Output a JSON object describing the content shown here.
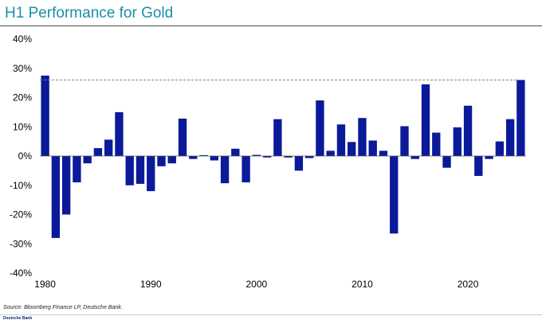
{
  "chart_data": {
    "type": "bar",
    "title": "H1 Performance for Gold",
    "xlabel": "",
    "ylabel": "",
    "x": [
      1980,
      1981,
      1982,
      1983,
      1984,
      1985,
      1986,
      1987,
      1988,
      1989,
      1990,
      1991,
      1992,
      1993,
      1994,
      1995,
      1996,
      1997,
      1998,
      1999,
      2000,
      2001,
      2002,
      2003,
      2004,
      2005,
      2006,
      2007,
      2008,
      2009,
      2010,
      2011,
      2012,
      2013,
      2014,
      2015,
      2016,
      2017,
      2018,
      2019,
      2020,
      2021,
      2022,
      2023,
      2024,
      2025
    ],
    "values": [
      27.5,
      -28,
      -20,
      -9,
      -2.5,
      2.7,
      5.6,
      15,
      -10,
      -9.5,
      -12,
      -3.5,
      -2.5,
      12.8,
      -1,
      0.3,
      -1.5,
      -9.3,
      2.5,
      -9,
      0.4,
      -0.5,
      12.6,
      -0.5,
      -5,
      -0.7,
      19,
      1.8,
      10.8,
      4.8,
      13,
      5.3,
      1.8,
      -26.5,
      10.2,
      -1,
      24.5,
      8,
      -4,
      9.8,
      17.2,
      -6.8,
      -1,
      5,
      12.6,
      26
    ],
    "reference_line": 26,
    "ylim": [
      -40,
      40
    ],
    "yticks": [
      -40,
      -30,
      -20,
      -10,
      0,
      10,
      20,
      30,
      40
    ],
    "ytick_labels": [
      "-40%",
      "-30%",
      "-20%",
      "-10%",
      "0%",
      "10%",
      "20%",
      "30%",
      "40%"
    ],
    "xtick_values": [
      1980,
      1990,
      2000,
      2010,
      2020
    ],
    "xtick_labels": [
      "1980",
      "1990",
      "2000",
      "2010",
      "2020"
    ],
    "grid": false,
    "legend": "none",
    "bar_color": "#0a1a99",
    "source": "Source: Bloomberg Finance LP, Deutsche Bank."
  },
  "brand": "Deutsche Bank"
}
